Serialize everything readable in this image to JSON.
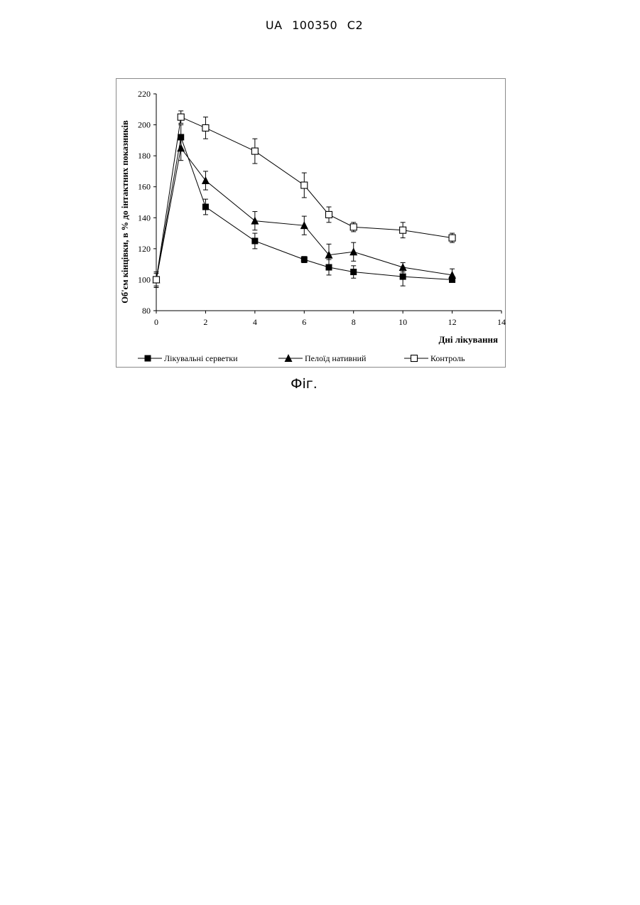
{
  "document": {
    "header": "UA 100350 C2",
    "caption": "Фіг."
  },
  "chart_data": {
    "type": "line",
    "xlabel": "Дні лікування",
    "ylabel": "Об'єм кінцівки, в % до інтактних показників",
    "xlim": [
      0,
      14
    ],
    "ylim": [
      80,
      220
    ],
    "x_ticks": [
      0,
      2,
      4,
      6,
      8,
      10,
      12,
      14
    ],
    "y_ticks": [
      80,
      100,
      120,
      140,
      160,
      180,
      200,
      220
    ],
    "grid": false,
    "error_bars": true,
    "legend_position": "bottom",
    "series": [
      {
        "name": "Лікувальні серветки",
        "marker": "filled-square",
        "x": [
          0,
          1,
          2,
          4,
          6,
          7,
          8,
          10,
          12
        ],
        "y": [
          100,
          192,
          147,
          125,
          113,
          108,
          105,
          102,
          100
        ],
        "err": [
          5,
          8,
          5,
          5,
          2,
          5,
          4,
          6,
          1
        ]
      },
      {
        "name": "Пелоїд нативний",
        "marker": "filled-triangle",
        "x": [
          0,
          1,
          2,
          4,
          6,
          7,
          8,
          10,
          12
        ],
        "y": [
          100,
          185,
          164,
          138,
          135,
          116,
          118,
          108,
          103
        ],
        "err": [
          4,
          8,
          6,
          6,
          6,
          7,
          6,
          3,
          4
        ]
      },
      {
        "name": "Контроль",
        "marker": "open-square",
        "x": [
          0,
          1,
          2,
          4,
          6,
          7,
          8,
          10,
          12
        ],
        "y": [
          100,
          205,
          198,
          183,
          161,
          142,
          134,
          132,
          127
        ],
        "err": [
          5,
          4,
          7,
          8,
          8,
          5,
          3,
          5,
          3
        ]
      }
    ]
  }
}
